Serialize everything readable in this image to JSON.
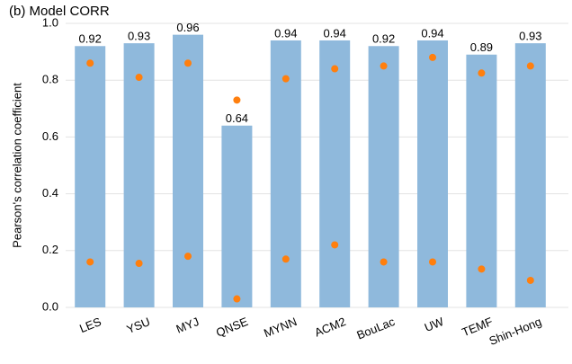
{
  "chart_data": {
    "type": "bar",
    "title": "(b) Model CORR",
    "y_label": "Pearson's correlation coefficient",
    "categories": [
      "LES",
      "YSU",
      "MYJ",
      "QNSE",
      "MYNN",
      "ACM2",
      "BouLac",
      "UW",
      "TEMF",
      "Shin-Hong"
    ],
    "series": [
      {
        "type": "bar",
        "color": "#8fb9dc",
        "values": [
          0.92,
          0.93,
          0.96,
          0.64,
          0.94,
          0.94,
          0.92,
          0.94,
          0.89,
          0.93
        ]
      },
      {
        "type": "scatter",
        "color": "#ff7f0e",
        "values": [
          0.86,
          0.81,
          0.86,
          0.73,
          0.805,
          0.84,
          0.85,
          0.88,
          0.825,
          0.85
        ]
      },
      {
        "type": "scatter",
        "color": "#ff7f0e",
        "values": [
          0.16,
          0.155,
          0.18,
          0.03,
          0.17,
          0.22,
          0.16,
          0.16,
          0.135,
          0.095
        ]
      }
    ],
    "ylim": [
      0,
      1
    ],
    "yticks": [
      {
        "value": 0,
        "label": "0.0"
      },
      0.2,
      0.4,
      0.6,
      0.8,
      {
        "value": 1,
        "label": "1.0"
      }
    ],
    "grid": true
  }
}
